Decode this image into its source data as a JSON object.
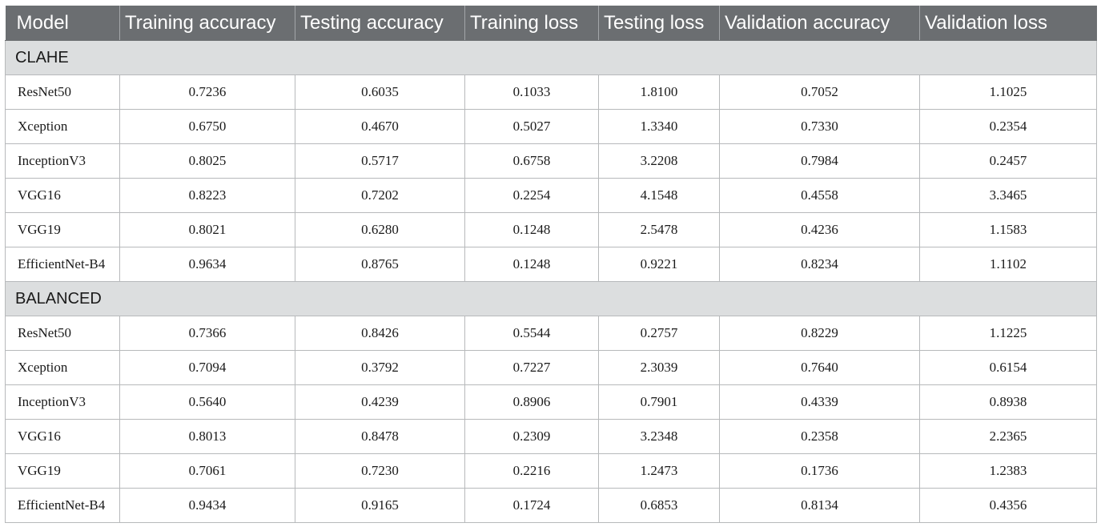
{
  "table": {
    "columns": [
      "Model",
      "Training accuracy",
      "Testing accuracy",
      "Training loss",
      "Testing loss",
      "Validation accuracy",
      "Validation loss"
    ],
    "sections": [
      {
        "label": "CLAHE",
        "rows": [
          [
            "ResNet50",
            "0.7236",
            "0.6035",
            "0.1033",
            "1.8100",
            "0.7052",
            "1.1025"
          ],
          [
            "Xception",
            "0.6750",
            "0.4670",
            "0.5027",
            "1.3340",
            "0.7330",
            "0.2354"
          ],
          [
            "InceptionV3",
            "0.8025",
            "0.5717",
            "0.6758",
            "3.2208",
            "0.7984",
            "0.2457"
          ],
          [
            "VGG16",
            "0.8223",
            "0.7202",
            "0.2254",
            "4.1548",
            "0.4558",
            "3.3465"
          ],
          [
            "VGG19",
            "0.8021",
            "0.6280",
            "0.1248",
            "2.5478",
            "0.4236",
            "1.1583"
          ],
          [
            "EfficientNet-B4",
            "0.9634",
            "0.8765",
            "0.1248",
            "0.9221",
            "0.8234",
            "1.1102"
          ]
        ]
      },
      {
        "label": "BALANCED",
        "rows": [
          [
            "ResNet50",
            "0.7366",
            "0.8426",
            "0.5544",
            "0.2757",
            "0.8229",
            "1.1225"
          ],
          [
            "Xception",
            "0.7094",
            "0.3792",
            "0.7227",
            "2.3039",
            "0.7640",
            "0.6154"
          ],
          [
            "InceptionV3",
            "0.5640",
            "0.4239",
            "0.8906",
            "0.7901",
            "0.4339",
            "0.8938"
          ],
          [
            "VGG16",
            "0.8013",
            "0.8478",
            "0.2309",
            "3.2348",
            "0.2358",
            "2.2365"
          ],
          [
            "VGG19",
            "0.7061",
            "0.7230",
            "0.2216",
            "1.2473",
            "0.1736",
            "1.2383"
          ],
          [
            "EfficientNet-B4",
            "0.9434",
            "0.9165",
            "0.1724",
            "0.6853",
            "0.8134",
            "0.4356"
          ]
        ]
      }
    ]
  }
}
